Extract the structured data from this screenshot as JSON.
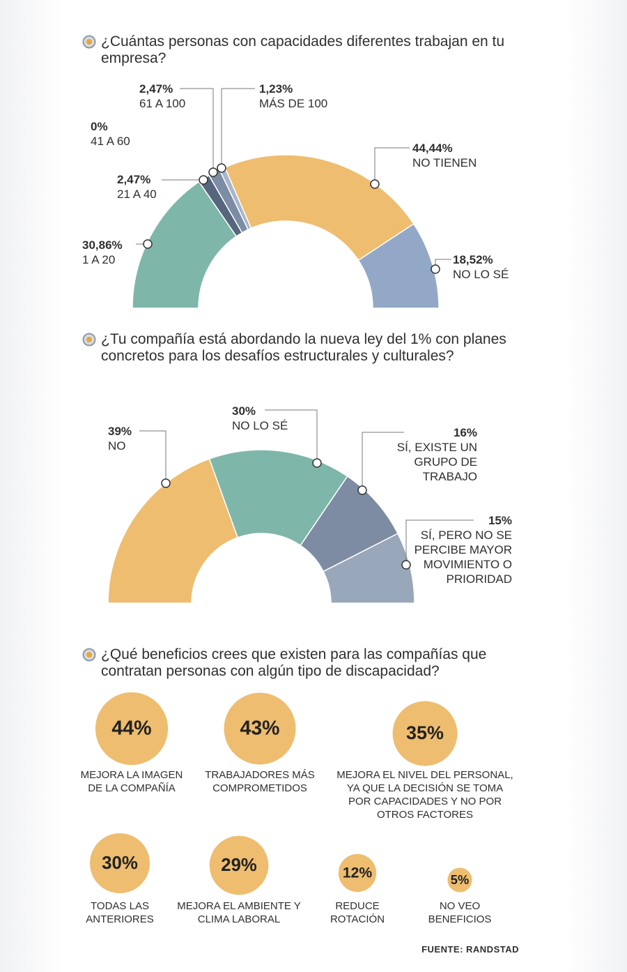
{
  "chart_data": [
    {
      "type": "semi-donut",
      "title": "¿Cuántas personas con capacidades diferentes trabajan en tu empresa?",
      "categories": [
        "1 A 20",
        "21 A 40",
        "41 A 60",
        "61 A 100",
        "MÁS DE 100",
        "NO TIENEN",
        "NO LO SÉ"
      ],
      "values": [
        30.86,
        2.47,
        0,
        2.47,
        1.23,
        44.44,
        18.52
      ],
      "value_labels": [
        "30,86%",
        "2,47%",
        "0%",
        "2,47%",
        "1,23%",
        "44,44%",
        "18,52%"
      ],
      "colors": [
        "#7fb6aa",
        "#56667c",
        "#6f7f96",
        "#7c8ca5",
        "#a8b6ca",
        "#eebd6f",
        "#93a8c7"
      ]
    },
    {
      "type": "semi-donut",
      "title": "¿Tu compañía está abordando la nueva ley del 1% con planes concretos para los desafíos estructurales y culturales?",
      "categories": [
        "NO",
        "NO LO SÉ",
        "SÍ, EXISTE UN GRUPO DE TRABAJO",
        "SÍ, PERO NO SE PERCIBE MAYOR MOVIMIENTO O PRIORIDAD"
      ],
      "values": [
        39,
        30,
        16,
        15
      ],
      "value_labels": [
        "39%",
        "30%",
        "16%",
        "15%"
      ],
      "colors": [
        "#eebd6f",
        "#7fb6aa",
        "#7d8ca2",
        "#98a7ba"
      ]
    },
    {
      "type": "bubble",
      "title": "¿Qué beneficios crees que existen para las compañías que contratan personas con algún tipo de discapacidad?",
      "categories": [
        "MEJORA LA IMAGEN DE LA COMPAÑÍA",
        "TRABAJADORES MÁS COMPROMETIDOS",
        "MEJORA EL NIVEL DEL PERSONAL, YA QUE LA DECISIÓN SE TOMA POR CAPACIDADES Y NO POR OTROS FACTORES",
        "TODAS LAS ANTERIORES",
        "MEJORA EL AMBIENTE Y CLIMA LABORAL",
        "REDUCE ROTACIÓN",
        "NO VEO BENEFICIOS"
      ],
      "values": [
        44,
        43,
        35,
        30,
        29,
        12,
        5
      ],
      "value_labels": [
        "44%",
        "43%",
        "35%",
        "30%",
        "29%",
        "12%",
        "5%"
      ],
      "color": "#eebd6f",
      "source": "FUENTE: RANDSTAD"
    }
  ]
}
